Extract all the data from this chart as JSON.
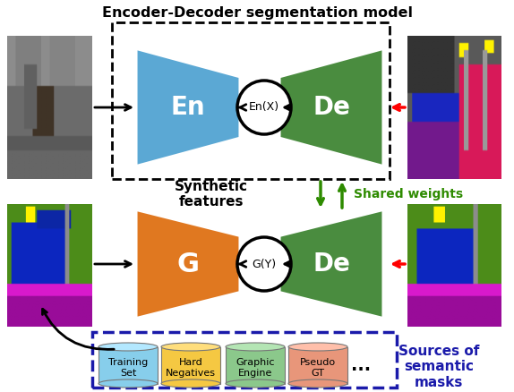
{
  "title": "Encoder-Decoder segmentation model",
  "bg_color": "#ffffff",
  "encoder_color": "#5ba8d4",
  "decoder_color": "#4a8c3f",
  "generator_color": "#e07820",
  "arrow_color_black": "#000000",
  "arrow_color_red": "#ff0000",
  "arrow_color_green": "#2e8b00",
  "dashed_box_color": "#000000",
  "dashed_box_color2": "#1a1aaa",
  "shared_weights_color": "#2e8b00",
  "sources_color": "#1a1aaa",
  "cylinder_colors": [
    "#87ceeb",
    "#f5c842",
    "#8bc88b",
    "#e8967a"
  ],
  "cylinder_labels": [
    "Training\nSet",
    "Hard\nNegatives",
    "Graphic\nEngine",
    "Pseudo\nGT"
  ],
  "shared_weights_text": "Shared weights",
  "sources_text": "Sources of\nsemantic\nmasks",
  "synthetic_features_text": "Synthetic\nfeatures"
}
